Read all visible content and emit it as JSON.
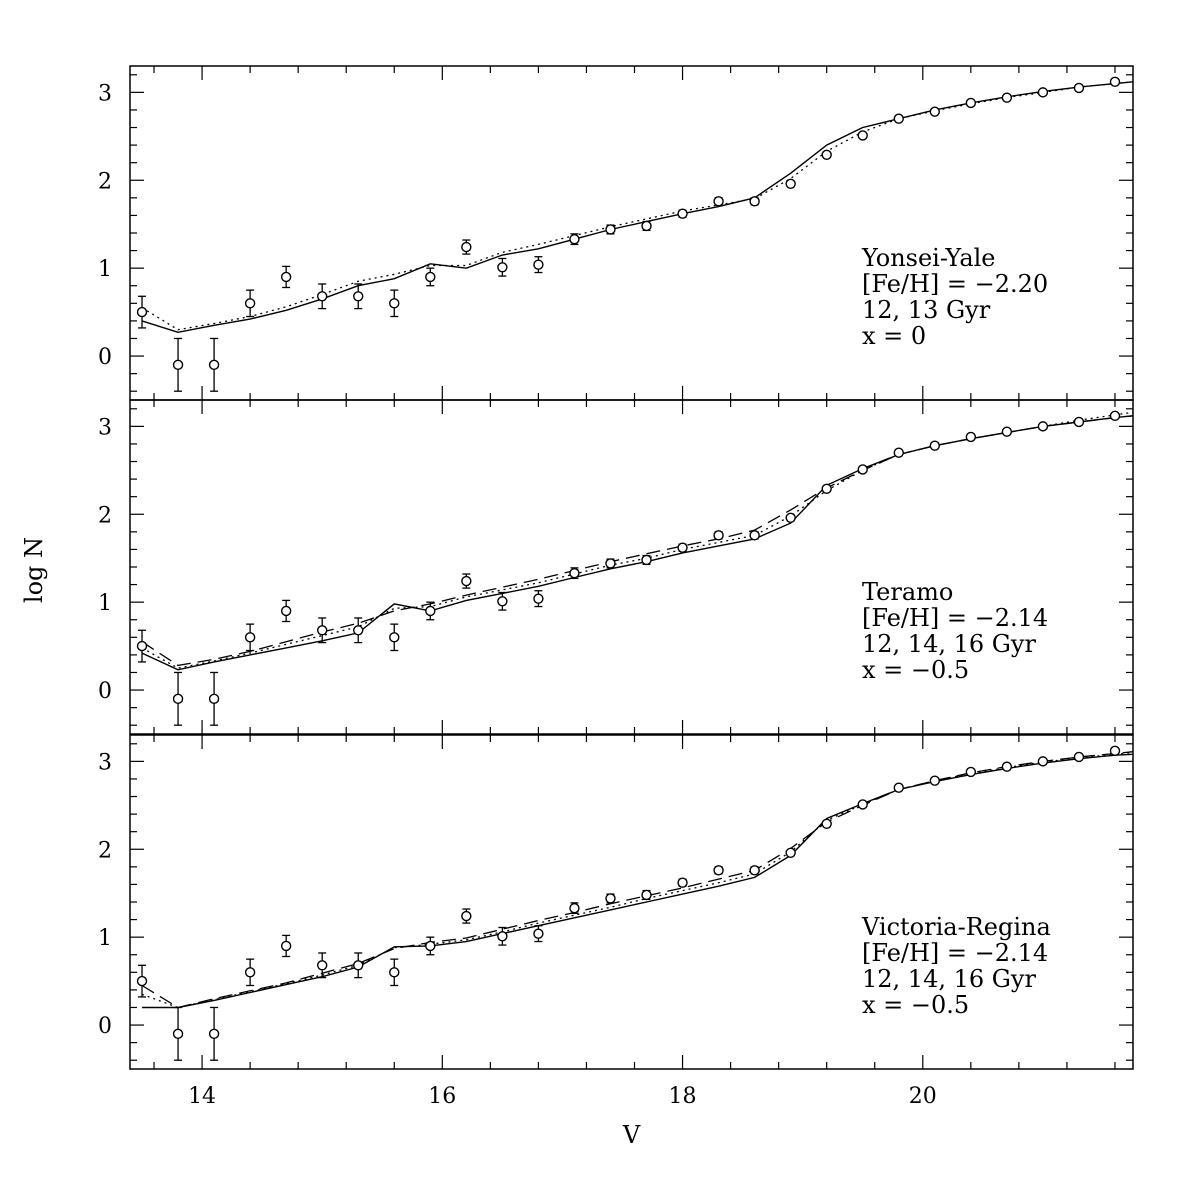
{
  "chart_data": [
    {
      "type": "line",
      "panel": "top",
      "xlim": [
        13.4,
        21.75
      ],
      "ylim": [
        -0.5,
        3.3
      ],
      "yticks": [
        "0",
        "1",
        "2",
        "3"
      ],
      "annotations": [
        "Yonsei-Yale",
        "[Fe/H] = -2.20",
        "12, 13 Gyr",
        "x = 0"
      ],
      "observed": [
        {
          "x": 13.5,
          "y": 0.5,
          "err": 0.18
        },
        {
          "x": 13.8,
          "y": -0.1,
          "err": 0.3
        },
        {
          "x": 14.1,
          "y": -0.1,
          "err": 0.3
        },
        {
          "x": 14.4,
          "y": 0.6,
          "err": 0.15
        },
        {
          "x": 14.7,
          "y": 0.9,
          "err": 0.12
        },
        {
          "x": 15.0,
          "y": 0.68,
          "err": 0.14
        },
        {
          "x": 15.3,
          "y": 0.68,
          "err": 0.14
        },
        {
          "x": 15.6,
          "y": 0.6,
          "err": 0.15
        },
        {
          "x": 15.9,
          "y": 0.9,
          "err": 0.1
        },
        {
          "x": 16.2,
          "y": 1.24,
          "err": 0.08
        },
        {
          "x": 16.5,
          "y": 1.01,
          "err": 0.1
        },
        {
          "x": 16.8,
          "y": 1.04,
          "err": 0.09
        },
        {
          "x": 17.1,
          "y": 1.33,
          "err": 0.06
        },
        {
          "x": 17.4,
          "y": 1.44,
          "err": 0.05
        },
        {
          "x": 17.7,
          "y": 1.48,
          "err": 0.05
        },
        {
          "x": 18.0,
          "y": 1.62,
          "err": 0.04
        },
        {
          "x": 18.3,
          "y": 1.76,
          "err": 0.04
        },
        {
          "x": 18.6,
          "y": 1.76,
          "err": 0.04
        },
        {
          "x": 18.9,
          "y": 1.96,
          "err": 0.03
        },
        {
          "x": 19.2,
          "y": 2.29,
          "err": 0.03
        },
        {
          "x": 19.5,
          "y": 2.51,
          "err": 0.02
        },
        {
          "x": 19.8,
          "y": 2.7,
          "err": 0.02
        },
        {
          "x": 20.1,
          "y": 2.78,
          "err": 0.02
        },
        {
          "x": 20.4,
          "y": 2.88,
          "err": 0.02
        },
        {
          "x": 20.7,
          "y": 2.94,
          "err": 0.02
        },
        {
          "x": 21.0,
          "y": 3.0,
          "err": 0.02
        },
        {
          "x": 21.3,
          "y": 3.05,
          "err": 0.02
        },
        {
          "x": 21.6,
          "y": 3.12,
          "err": 0.02
        }
      ],
      "models": [
        {
          "style": "solid",
          "x": [
            13.5,
            13.8,
            14.1,
            14.4,
            14.7,
            15.0,
            15.3,
            15.6,
            15.9,
            16.2,
            16.5,
            16.8,
            17.1,
            17.4,
            17.7,
            18.0,
            18.3,
            18.6,
            18.9,
            19.2,
            19.5,
            19.8,
            20.1,
            20.4,
            20.7,
            21.0,
            21.3,
            21.6,
            21.75
          ],
          "y": [
            0.4,
            0.27,
            0.35,
            0.42,
            0.52,
            0.65,
            0.8,
            0.88,
            1.05,
            1.0,
            1.15,
            1.22,
            1.33,
            1.44,
            1.53,
            1.62,
            1.7,
            1.8,
            2.08,
            2.4,
            2.6,
            2.7,
            2.8,
            2.88,
            2.95,
            3.01,
            3.06,
            3.1,
            3.12
          ]
        },
        {
          "style": "dotted",
          "x": [
            13.5,
            13.8,
            14.1,
            14.4,
            14.7,
            15.0,
            15.3,
            15.6,
            15.9,
            16.2,
            16.5,
            16.8,
            17.1,
            17.4,
            17.7,
            18.0,
            18.3,
            18.6,
            18.9,
            19.2,
            19.5,
            19.8,
            20.1,
            20.4,
            20.7,
            21.0,
            21.3,
            21.6,
            21.75
          ],
          "y": [
            0.55,
            0.3,
            0.37,
            0.45,
            0.56,
            0.7,
            0.85,
            0.93,
            1.03,
            1.03,
            1.18,
            1.27,
            1.37,
            1.47,
            1.56,
            1.65,
            1.72,
            1.79,
            2.02,
            2.33,
            2.55,
            2.7,
            2.79,
            2.87,
            2.94,
            3.0,
            3.06,
            3.1,
            3.12
          ]
        }
      ]
    },
    {
      "type": "line",
      "panel": "middle",
      "xlim": [
        13.4,
        21.75
      ],
      "ylim": [
        -0.5,
        3.3
      ],
      "yticks": [
        "0",
        "1",
        "2",
        "3"
      ],
      "annotations": [
        "Teramo",
        "[Fe/H] = -2.14",
        "12, 14, 16 Gyr",
        "x = -0.5"
      ],
      "observed": [
        {
          "x": 13.5,
          "y": 0.5,
          "err": 0.18
        },
        {
          "x": 13.8,
          "y": -0.1,
          "err": 0.3
        },
        {
          "x": 14.1,
          "y": -0.1,
          "err": 0.3
        },
        {
          "x": 14.4,
          "y": 0.6,
          "err": 0.15
        },
        {
          "x": 14.7,
          "y": 0.9,
          "err": 0.12
        },
        {
          "x": 15.0,
          "y": 0.68,
          "err": 0.14
        },
        {
          "x": 15.3,
          "y": 0.68,
          "err": 0.14
        },
        {
          "x": 15.6,
          "y": 0.6,
          "err": 0.15
        },
        {
          "x": 15.9,
          "y": 0.9,
          "err": 0.1
        },
        {
          "x": 16.2,
          "y": 1.24,
          "err": 0.08
        },
        {
          "x": 16.5,
          "y": 1.01,
          "err": 0.1
        },
        {
          "x": 16.8,
          "y": 1.04,
          "err": 0.09
        },
        {
          "x": 17.1,
          "y": 1.33,
          "err": 0.06
        },
        {
          "x": 17.4,
          "y": 1.44,
          "err": 0.05
        },
        {
          "x": 17.7,
          "y": 1.48,
          "err": 0.05
        },
        {
          "x": 18.0,
          "y": 1.62,
          "err": 0.04
        },
        {
          "x": 18.3,
          "y": 1.76,
          "err": 0.04
        },
        {
          "x": 18.6,
          "y": 1.76,
          "err": 0.04
        },
        {
          "x": 18.9,
          "y": 1.96,
          "err": 0.03
        },
        {
          "x": 19.2,
          "y": 2.29,
          "err": 0.03
        },
        {
          "x": 19.5,
          "y": 2.51,
          "err": 0.02
        },
        {
          "x": 19.8,
          "y": 2.7,
          "err": 0.02
        },
        {
          "x": 20.1,
          "y": 2.78,
          "err": 0.02
        },
        {
          "x": 20.4,
          "y": 2.88,
          "err": 0.02
        },
        {
          "x": 20.7,
          "y": 2.94,
          "err": 0.02
        },
        {
          "x": 21.0,
          "y": 3.0,
          "err": 0.02
        },
        {
          "x": 21.3,
          "y": 3.05,
          "err": 0.02
        },
        {
          "x": 21.6,
          "y": 3.12,
          "err": 0.02
        }
      ],
      "models": [
        {
          "style": "solid",
          "x": [
            13.5,
            13.8,
            14.1,
            14.4,
            14.7,
            15.0,
            15.3,
            15.6,
            15.9,
            16.2,
            16.5,
            16.8,
            17.1,
            17.4,
            17.7,
            18.0,
            18.3,
            18.6,
            18.9,
            19.2,
            19.5,
            19.8,
            20.1,
            20.4,
            20.7,
            21.0,
            21.3,
            21.6,
            21.75
          ],
          "y": [
            0.42,
            0.23,
            0.32,
            0.4,
            0.48,
            0.56,
            0.65,
            0.98,
            0.9,
            1.02,
            1.1,
            1.18,
            1.28,
            1.38,
            1.46,
            1.56,
            1.64,
            1.72,
            1.9,
            2.33,
            2.52,
            2.68,
            2.78,
            2.86,
            2.93,
            3.0,
            3.05,
            3.1,
            3.12
          ]
        },
        {
          "style": "dotted",
          "x": [
            13.5,
            13.8,
            14.1,
            14.4,
            14.7,
            15.0,
            15.3,
            15.6,
            15.9,
            16.2,
            16.5,
            16.8,
            17.1,
            17.4,
            17.7,
            18.0,
            18.3,
            18.6,
            18.9,
            19.2,
            19.5,
            19.8,
            20.1,
            20.4,
            20.7,
            21.0,
            21.3,
            21.6,
            21.75
          ],
          "y": [
            0.48,
            0.25,
            0.33,
            0.42,
            0.52,
            0.62,
            0.72,
            0.93,
            0.95,
            1.06,
            1.14,
            1.22,
            1.32,
            1.42,
            1.5,
            1.6,
            1.68,
            1.76,
            1.98,
            2.27,
            2.5,
            2.68,
            2.78,
            2.86,
            2.93,
            3.0,
            3.07,
            3.13,
            3.16
          ]
        },
        {
          "style": "dashed",
          "x": [
            13.5,
            13.8,
            14.1,
            14.4,
            14.7,
            15.0,
            15.3,
            15.6,
            15.9,
            16.2,
            16.5,
            16.8,
            17.1,
            17.4,
            17.7,
            18.0,
            18.3,
            18.6,
            18.9,
            19.2,
            19.5,
            19.8,
            20.1,
            20.4,
            20.7,
            21.0,
            21.3,
            21.6,
            21.75
          ],
          "y": [
            0.55,
            0.28,
            0.35,
            0.44,
            0.55,
            0.66,
            0.76,
            0.9,
            0.98,
            1.08,
            1.17,
            1.26,
            1.36,
            1.46,
            1.55,
            1.64,
            1.72,
            1.82,
            2.05,
            2.3,
            2.5,
            2.68,
            2.78,
            2.86,
            2.93,
            3.0,
            3.05,
            3.1,
            3.12
          ]
        }
      ]
    },
    {
      "type": "line",
      "panel": "bottom",
      "xlim": [
        13.4,
        21.75
      ],
      "ylim": [
        -0.5,
        3.3
      ],
      "yticks": [
        "0",
        "1",
        "2",
        "3"
      ],
      "xticks": [
        "14",
        "16",
        "18",
        "20"
      ],
      "xlabel": "V",
      "annotations": [
        "Victoria-Regina",
        "[Fe/H] = -2.14",
        "12, 14, 16 Gyr",
        "x = -0.5"
      ],
      "observed": [
        {
          "x": 13.5,
          "y": 0.5,
          "err": 0.18
        },
        {
          "x": 13.8,
          "y": -0.1,
          "err": 0.3
        },
        {
          "x": 14.1,
          "y": -0.1,
          "err": 0.3
        },
        {
          "x": 14.4,
          "y": 0.6,
          "err": 0.15
        },
        {
          "x": 14.7,
          "y": 0.9,
          "err": 0.12
        },
        {
          "x": 15.0,
          "y": 0.68,
          "err": 0.14
        },
        {
          "x": 15.3,
          "y": 0.68,
          "err": 0.14
        },
        {
          "x": 15.6,
          "y": 0.6,
          "err": 0.15
        },
        {
          "x": 15.9,
          "y": 0.9,
          "err": 0.1
        },
        {
          "x": 16.2,
          "y": 1.24,
          "err": 0.08
        },
        {
          "x": 16.5,
          "y": 1.01,
          "err": 0.1
        },
        {
          "x": 16.8,
          "y": 1.04,
          "err": 0.09
        },
        {
          "x": 17.1,
          "y": 1.33,
          "err": 0.06
        },
        {
          "x": 17.4,
          "y": 1.44,
          "err": 0.05
        },
        {
          "x": 17.7,
          "y": 1.48,
          "err": 0.05
        },
        {
          "x": 18.0,
          "y": 1.62,
          "err": 0.04
        },
        {
          "x": 18.3,
          "y": 1.76,
          "err": 0.04
        },
        {
          "x": 18.6,
          "y": 1.76,
          "err": 0.04
        },
        {
          "x": 18.9,
          "y": 1.96,
          "err": 0.03
        },
        {
          "x": 19.2,
          "y": 2.29,
          "err": 0.03
        },
        {
          "x": 19.5,
          "y": 2.51,
          "err": 0.02
        },
        {
          "x": 19.8,
          "y": 2.7,
          "err": 0.02
        },
        {
          "x": 20.1,
          "y": 2.78,
          "err": 0.02
        },
        {
          "x": 20.4,
          "y": 2.88,
          "err": 0.02
        },
        {
          "x": 20.7,
          "y": 2.94,
          "err": 0.02
        },
        {
          "x": 21.0,
          "y": 3.0,
          "err": 0.02
        },
        {
          "x": 21.3,
          "y": 3.05,
          "err": 0.02
        },
        {
          "x": 21.6,
          "y": 3.12,
          "err": 0.02
        }
      ],
      "models": [
        {
          "style": "solid",
          "x": [
            13.5,
            13.8,
            14.1,
            14.4,
            14.7,
            15.0,
            15.3,
            15.6,
            15.9,
            16.2,
            16.5,
            16.8,
            17.1,
            17.4,
            17.7,
            18.0,
            18.3,
            18.6,
            18.9,
            19.2,
            19.5,
            19.8,
            20.1,
            20.4,
            20.7,
            21.0,
            21.3,
            21.6,
            21.75
          ],
          "y": [
            0.2,
            0.2,
            0.28,
            0.37,
            0.46,
            0.55,
            0.66,
            0.89,
            0.9,
            0.95,
            1.04,
            1.13,
            1.22,
            1.31,
            1.4,
            1.49,
            1.58,
            1.68,
            1.93,
            2.35,
            2.52,
            2.68,
            2.77,
            2.85,
            2.92,
            2.98,
            3.03,
            3.07,
            3.08
          ]
        },
        {
          "style": "dotted",
          "x": [
            13.5,
            13.8,
            14.1,
            14.4,
            14.7,
            15.0,
            15.3,
            15.6,
            15.9,
            16.2,
            16.5,
            16.8,
            17.1,
            17.4,
            17.7,
            18.0,
            18.3,
            18.6,
            18.9,
            19.2,
            19.5,
            19.8,
            20.1,
            20.4,
            20.7,
            21.0,
            21.3,
            21.6,
            21.75
          ],
          "y": [
            0.35,
            0.2,
            0.29,
            0.38,
            0.47,
            0.57,
            0.68,
            0.88,
            0.92,
            0.97,
            1.06,
            1.16,
            1.25,
            1.34,
            1.44,
            1.53,
            1.62,
            1.72,
            1.97,
            2.33,
            2.51,
            2.68,
            2.78,
            2.86,
            2.93,
            2.99,
            3.04,
            3.08,
            3.1
          ]
        },
        {
          "style": "dashed",
          "x": [
            13.5,
            13.8,
            14.1,
            14.4,
            14.7,
            15.0,
            15.3,
            15.6,
            15.9,
            16.2,
            16.5,
            16.8,
            17.1,
            17.4,
            17.7,
            18.0,
            18.3,
            18.6,
            18.9,
            19.2,
            19.5,
            19.8,
            20.1,
            20.4,
            20.7,
            21.0,
            21.3,
            21.6,
            21.75
          ],
          "y": [
            0.45,
            0.2,
            0.3,
            0.39,
            0.48,
            0.59,
            0.7,
            0.87,
            0.94,
            0.99,
            1.09,
            1.19,
            1.28,
            1.38,
            1.47,
            1.56,
            1.66,
            1.76,
            2.01,
            2.31,
            2.5,
            2.68,
            2.78,
            2.87,
            2.94,
            3.0,
            3.05,
            3.09,
            3.11
          ]
        }
      ]
    }
  ],
  "shared": {
    "ylabel": "log N"
  }
}
